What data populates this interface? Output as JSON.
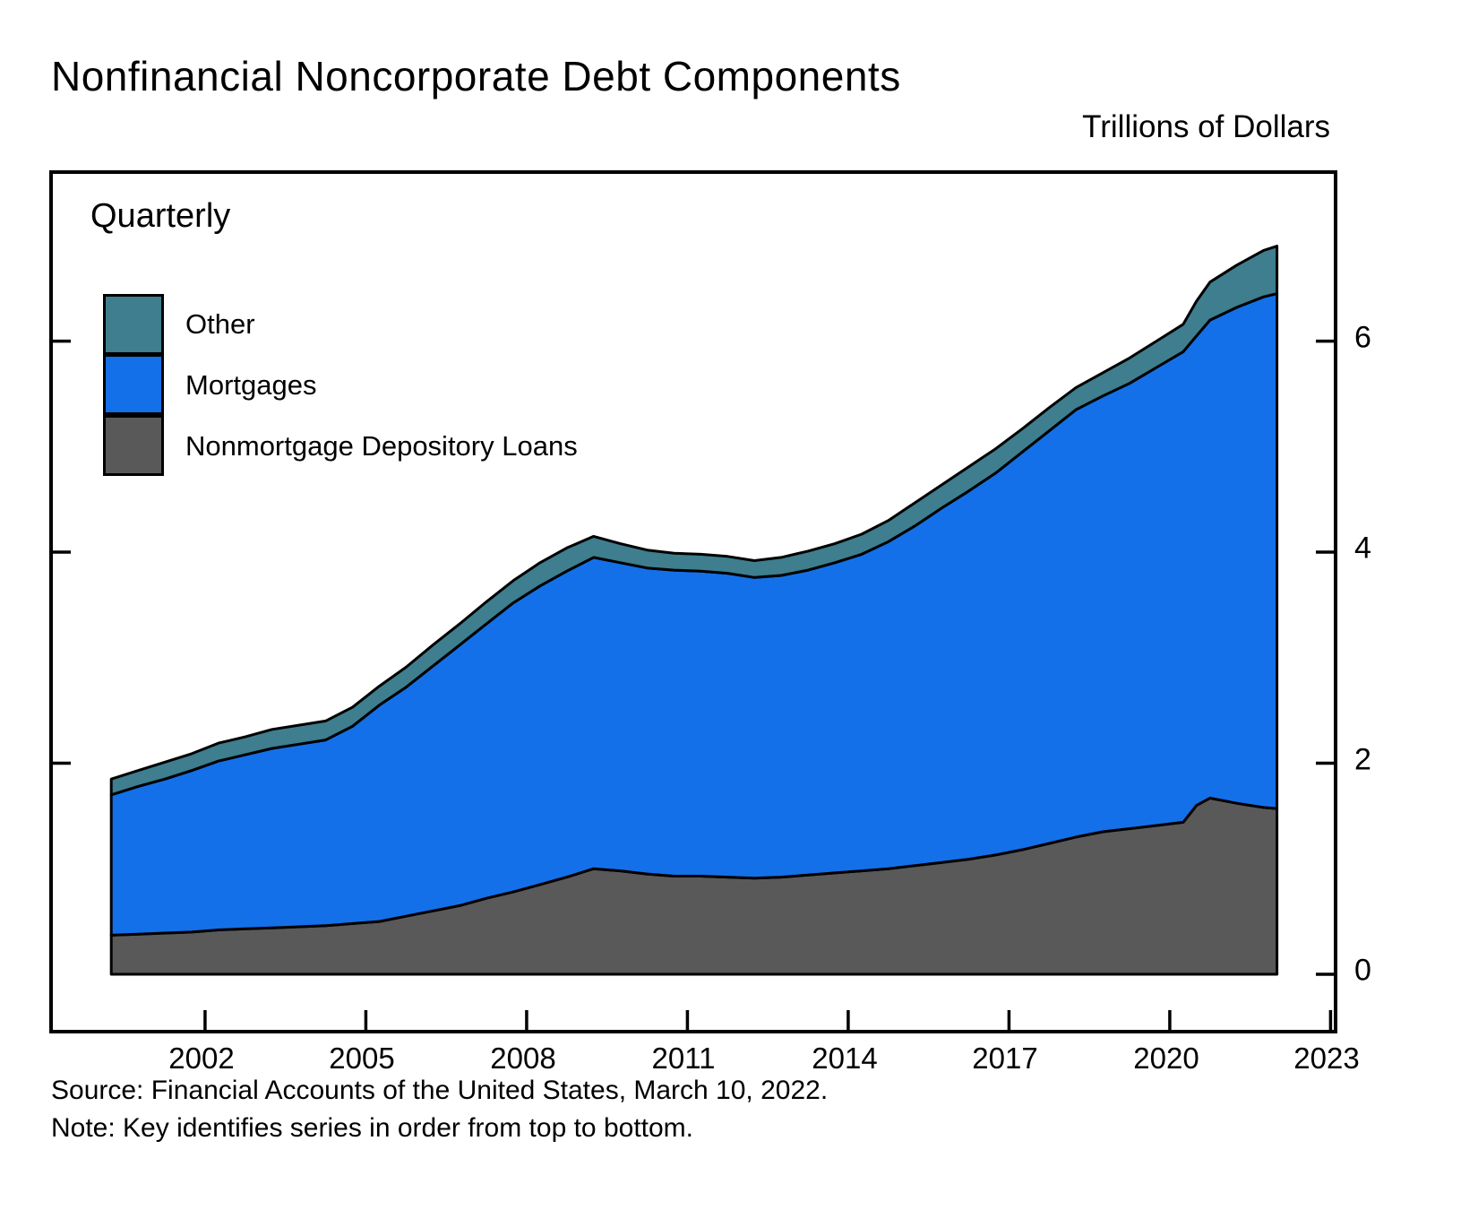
{
  "title": "Nonfinancial Noncorporate Debt Components",
  "units_label": "Trillions of Dollars",
  "frequency_label": "Quarterly",
  "legend": [
    {
      "label": "Other",
      "color": "#3E7E8E"
    },
    {
      "label": "Mortgages",
      "color": "#1470E8"
    },
    {
      "label": "Nonmortgage Depository Loans",
      "color": "#595959"
    }
  ],
  "source_line": "Source: Financial Accounts of the United States, March 10, 2022.",
  "note_line": "Note: Key identifies series in order from top to bottom.",
  "colors": {
    "outline": "#000000",
    "background": "#ffffff"
  },
  "chart_data": {
    "type": "area",
    "stacked": true,
    "title": "Nonfinancial Noncorporate Debt Components",
    "ylabel": "Trillions of Dollars",
    "frequency": "Quarterly",
    "xlim": [
      1999.16,
      2023.06
    ],
    "ylim": [
      -0.527,
      7.585
    ],
    "xticks": [
      2002,
      2005,
      2008,
      2011,
      2014,
      2017,
      2020,
      2023
    ],
    "xtick_labels": [
      "2002",
      "2005",
      "2008",
      "2011",
      "2014",
      "2017",
      "2020",
      "2023"
    ],
    "yticks": [
      0,
      2,
      4,
      6
    ],
    "ytick_labels": [
      "0",
      "2",
      "4",
      "6"
    ],
    "grid": false,
    "legend_position": "upper left",
    "x": [
      2000.25,
      2000.75,
      2001.25,
      2001.75,
      2002.25,
      2002.75,
      2003.25,
      2003.75,
      2004.25,
      2004.75,
      2005.25,
      2005.75,
      2006.25,
      2006.75,
      2007.25,
      2007.75,
      2008.25,
      2008.75,
      2009.25,
      2009.75,
      2010.25,
      2010.75,
      2011.25,
      2011.75,
      2012.25,
      2012.75,
      2013.25,
      2013.75,
      2014.25,
      2014.75,
      2015.25,
      2015.75,
      2016.25,
      2016.75,
      2017.25,
      2017.75,
      2018.25,
      2018.75,
      2019.25,
      2019.75,
      2020.25,
      2020.5,
      2020.75,
      2021.25,
      2021.75,
      2022.0
    ],
    "series": [
      {
        "name": "Nonmortgage Depository Loans",
        "color": "#595959",
        "values": [
          0.37,
          0.38,
          0.39,
          0.4,
          0.42,
          0.43,
          0.44,
          0.45,
          0.46,
          0.48,
          0.5,
          0.55,
          0.6,
          0.65,
          0.72,
          0.78,
          0.85,
          0.92,
          1.0,
          0.98,
          0.95,
          0.93,
          0.93,
          0.92,
          0.91,
          0.92,
          0.94,
          0.96,
          0.98,
          1.0,
          1.03,
          1.06,
          1.09,
          1.13,
          1.18,
          1.24,
          1.3,
          1.35,
          1.38,
          1.41,
          1.44,
          1.6,
          1.67,
          1.62,
          1.58,
          1.57
        ]
      },
      {
        "name": "Mortgages",
        "color": "#1470E8",
        "values": [
          1.33,
          1.4,
          1.46,
          1.53,
          1.6,
          1.65,
          1.7,
          1.73,
          1.76,
          1.87,
          2.05,
          2.17,
          2.32,
          2.47,
          2.6,
          2.74,
          2.83,
          2.9,
          2.95,
          2.92,
          2.9,
          2.9,
          2.89,
          2.88,
          2.85,
          2.86,
          2.89,
          2.94,
          3.0,
          3.1,
          3.22,
          3.36,
          3.49,
          3.62,
          3.77,
          3.91,
          4.05,
          4.13,
          4.22,
          4.34,
          4.46,
          4.45,
          4.53,
          4.7,
          4.84,
          4.88
        ]
      },
      {
        "name": "Other",
        "color": "#3E7E8E",
        "values": [
          0.15,
          0.15,
          0.16,
          0.16,
          0.17,
          0.17,
          0.18,
          0.18,
          0.18,
          0.18,
          0.18,
          0.19,
          0.2,
          0.2,
          0.21,
          0.21,
          0.22,
          0.22,
          0.2,
          0.18,
          0.17,
          0.16,
          0.16,
          0.16,
          0.16,
          0.17,
          0.18,
          0.18,
          0.19,
          0.2,
          0.22,
          0.22,
          0.23,
          0.23,
          0.22,
          0.22,
          0.21,
          0.22,
          0.24,
          0.25,
          0.26,
          0.33,
          0.36,
          0.4,
          0.44,
          0.45
        ]
      }
    ]
  }
}
